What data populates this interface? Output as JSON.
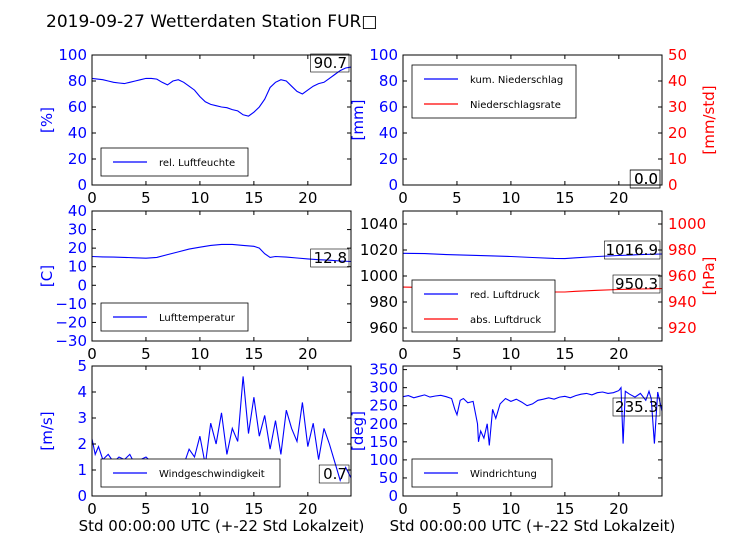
{
  "page_title": "2019-09-27 Wetterdaten Station FUR□",
  "chart_data": [
    {
      "id": "humidity",
      "type": "line",
      "ylabel": "[%]",
      "xlim": [
        0,
        24
      ],
      "ylim": [
        0,
        100
      ],
      "xticks": [
        "0",
        "5",
        "10",
        "15",
        "20"
      ],
      "yticks": [
        "0",
        "20",
        "40",
        "60",
        "80",
        "100"
      ],
      "legend": [
        "rel. Luftfeuchte"
      ],
      "legend_position": "lower-left",
      "annotation": "90.7",
      "colors": {
        "axis": "#0000ff",
        "line": "#0000ff"
      },
      "series": [
        {
          "x": [
            0,
            0.5,
            1,
            1.5,
            2,
            2.5,
            3,
            3.5,
            4,
            4.5,
            5,
            5.5,
            6,
            6.5,
            7,
            7.5,
            8,
            8.5,
            9,
            9.5,
            10,
            10.5,
            11,
            11.5,
            12,
            12.5,
            13,
            13.5,
            14,
            14.5,
            15,
            15.5,
            16,
            16.5,
            17,
            17.5,
            18,
            18.5,
            19,
            19.5,
            20,
            20.5,
            21,
            21.5,
            22,
            22.5,
            23,
            23.5,
            24
          ],
          "y": [
            82,
            81.5,
            81,
            80,
            79,
            78.5,
            78,
            79,
            80,
            81,
            82,
            82,
            81.5,
            79,
            77,
            80,
            81,
            79,
            76,
            73,
            68,
            64,
            62,
            61,
            60,
            59.5,
            58,
            57,
            54,
            53,
            56,
            60,
            66,
            75,
            79,
            81,
            80,
            76,
            72,
            70,
            73,
            76,
            78,
            79,
            82,
            85,
            88,
            90,
            90.7
          ]
        }
      ]
    },
    {
      "id": "precipitation",
      "type": "line",
      "ylabel": "[mm]",
      "ylabel_right": "[mm/std]",
      "xlim": [
        0,
        24
      ],
      "ylim": [
        0,
        100
      ],
      "ylim_right": [
        0,
        50
      ],
      "xticks": [
        "0",
        "5",
        "10",
        "15",
        "20"
      ],
      "yticks": [
        "0",
        "20",
        "40",
        "60",
        "80",
        "100"
      ],
      "yticks_right": [
        "0",
        "10",
        "20",
        "30",
        "40",
        "50"
      ],
      "legend": [
        "kum. Niederschlag",
        "Niederschlagsrate"
      ],
      "legend_position": "upper-left",
      "annotations": [
        "0.0",
        "0.0"
      ],
      "colors": {
        "left_axis": "#0000ff",
        "right_axis": "#ff0000",
        "series_1": "#0000ff",
        "series_2": "#ff0000"
      },
      "series": [
        {
          "name": "kum. Niederschlag",
          "axis": "left",
          "x": [
            0,
            24
          ],
          "y": [
            0,
            0
          ]
        },
        {
          "name": "Niederschlagsrate",
          "axis": "right",
          "x": [
            0,
            24
          ],
          "y": [
            0,
            0
          ]
        }
      ]
    },
    {
      "id": "temperature",
      "type": "line",
      "ylabel": "[C]",
      "xlim": [
        0,
        24
      ],
      "ylim": [
        -30,
        40
      ],
      "xticks": [
        "0",
        "5",
        "10",
        "15",
        "20"
      ],
      "yticks": [
        "−30",
        "−20",
        "−10",
        "0",
        "10",
        "20",
        "30",
        "40"
      ],
      "legend": [
        "Lufttemperatur"
      ],
      "legend_position": "lower-left",
      "annotation": "12.8",
      "colors": {
        "axis": "#0000ff",
        "line": "#0000ff"
      },
      "series": [
        {
          "x": [
            0,
            1,
            2,
            3,
            4,
            5,
            6,
            7,
            8,
            9,
            10,
            11,
            12,
            13,
            14,
            15,
            15.5,
            16,
            16.5,
            17,
            18,
            19,
            20,
            21,
            22,
            23,
            24
          ],
          "y": [
            15.5,
            15.3,
            15.2,
            15,
            14.8,
            14.6,
            15,
            16.5,
            18,
            19.5,
            20.5,
            21.5,
            22,
            22,
            21.5,
            21,
            20,
            17,
            15,
            15.5,
            15.2,
            14.7,
            14.2,
            13.8,
            13.5,
            13.1,
            12.8
          ]
        }
      ]
    },
    {
      "id": "pressure",
      "type": "line",
      "ylabel_right": "[hPa]",
      "xlim": [
        0,
        24
      ],
      "ylim": [
        950,
        1050
      ],
      "ylim_right": [
        910,
        1010
      ],
      "xticks": [
        "0",
        "5",
        "10",
        "15",
        "20"
      ],
      "yticks": [
        "960",
        "980",
        "1000",
        "1020",
        "1040"
      ],
      "yticks_right": [
        "920",
        "940",
        "960",
        "980",
        "1000"
      ],
      "legend": [
        "red. Luftdruck",
        "abs. Luftdruck"
      ],
      "legend_position": "lower-left",
      "annotations": [
        "1016.9",
        "950.3"
      ],
      "colors": {
        "left_axis": "#000000",
        "right_axis": "#ff0000",
        "series_1": "#0000ff",
        "series_2": "#ff0000"
      },
      "series": [
        {
          "name": "red. Luftdruck",
          "axis": "left",
          "x": [
            0,
            2,
            4,
            6,
            8,
            10,
            12,
            14,
            15,
            16,
            18,
            20,
            22,
            24
          ],
          "y": [
            1017.5,
            1017.2,
            1016.5,
            1016,
            1015.5,
            1015,
            1014.2,
            1013.5,
            1013.4,
            1014,
            1015,
            1015.8,
            1016.5,
            1016.9
          ]
        },
        {
          "name": "abs. Luftdruck",
          "axis": "right",
          "x": [
            0,
            2,
            4,
            6,
            8,
            10,
            12,
            14,
            15,
            16,
            18,
            20,
            22,
            24
          ],
          "y": [
            951.5,
            951.2,
            950.5,
            950,
            949.5,
            949,
            948.4,
            947.8,
            947.7,
            948.2,
            949,
            949.6,
            950,
            950.3
          ]
        }
      ]
    },
    {
      "id": "windspeed",
      "type": "line",
      "ylabel": "[m/s]",
      "xlabel": "Std 00:00:00 UTC (+-22 Std Lokalzeit)",
      "xlim": [
        0,
        24
      ],
      "ylim": [
        0,
        5
      ],
      "xticks": [
        "0",
        "5",
        "10",
        "15",
        "20"
      ],
      "yticks": [
        "0",
        "1",
        "2",
        "3",
        "4",
        "5"
      ],
      "legend": [
        "Windgeschwindigkeit"
      ],
      "legend_position": "lower-center",
      "annotation": "0.7",
      "colors": {
        "axis": "#0000ff",
        "line": "#0000ff"
      },
      "series": [
        {
          "x": [
            0,
            0.3,
            0.6,
            1,
            1.5,
            2,
            2.5,
            3,
            3.5,
            4,
            4.5,
            5,
            5.5,
            6,
            6.5,
            7,
            7.5,
            8,
            8.5,
            9,
            9.5,
            10,
            10.5,
            11,
            11.5,
            12,
            12.5,
            13,
            13.5,
            14,
            14.5,
            15,
            15.5,
            16,
            16.5,
            17,
            17.5,
            18,
            18.5,
            19,
            19.5,
            20,
            20.5,
            21,
            21.5,
            22,
            22.5,
            23,
            23.5,
            24
          ],
          "y": [
            2.2,
            1.6,
            1.9,
            1.4,
            1.6,
            1.3,
            1.5,
            1.4,
            1.6,
            1.2,
            1.4,
            1.5,
            1.3,
            0.6,
            1.1,
            0.9,
            0.5,
            0.8,
            1.2,
            1.8,
            1.5,
            2.3,
            1.2,
            2.8,
            2.0,
            3.2,
            1.6,
            2.6,
            2.1,
            4.6,
            2.4,
            3.8,
            2.3,
            3.1,
            1.8,
            2.9,
            1.6,
            3.3,
            2.6,
            2.1,
            3.6,
            1.9,
            2.8,
            1.4,
            2.6,
            2.0,
            1.3,
            0.6,
            1.1,
            0.7
          ]
        }
      ]
    },
    {
      "id": "winddirection",
      "type": "line",
      "ylabel": "[deg]",
      "xlabel": "Std 00:00:00 UTC (+-22 Std Lokalzeit)",
      "xlim": [
        0,
        24
      ],
      "ylim": [
        0,
        360
      ],
      "xticks": [
        "0",
        "5",
        "10",
        "15",
        "20"
      ],
      "yticks": [
        "0",
        "50",
        "100",
        "150",
        "200",
        "250",
        "300",
        "350"
      ],
      "legend": [
        "Windrichtung"
      ],
      "legend_position": "lower-left",
      "annotation": "235.3",
      "colors": {
        "axis": "#0000ff",
        "line": "#0000ff"
      },
      "series": [
        {
          "x": [
            0,
            0.5,
            1,
            1.5,
            2,
            2.5,
            3,
            3.5,
            4,
            4.5,
            4.8,
            5,
            5.3,
            5.6,
            6,
            6.5,
            6.9,
            7,
            7.2,
            7.5,
            7.8,
            8,
            8.3,
            8.6,
            9,
            9.5,
            10,
            10.5,
            11,
            11.5,
            12,
            12.5,
            13,
            13.5,
            14,
            14.5,
            15,
            15.5,
            16,
            16.5,
            17,
            17.5,
            18,
            18.5,
            19,
            19.5,
            20,
            20.2,
            20.4,
            20.6,
            21,
            21.5,
            22,
            22.5,
            22.8,
            23,
            23.3,
            23.6,
            24
          ],
          "y": [
            275,
            278,
            272,
            276,
            280,
            274,
            277,
            279,
            275,
            270,
            240,
            225,
            265,
            270,
            258,
            262,
            200,
            150,
            180,
            160,
            200,
            140,
            240,
            215,
            255,
            270,
            262,
            268,
            260,
            250,
            255,
            265,
            268,
            272,
            268,
            274,
            276,
            272,
            278,
            282,
            284,
            280,
            286,
            288,
            284,
            286,
            292,
            300,
            145,
            290,
            282,
            274,
            284,
            265,
            290,
            270,
            145,
            288,
            235
          ]
        }
      ]
    }
  ]
}
